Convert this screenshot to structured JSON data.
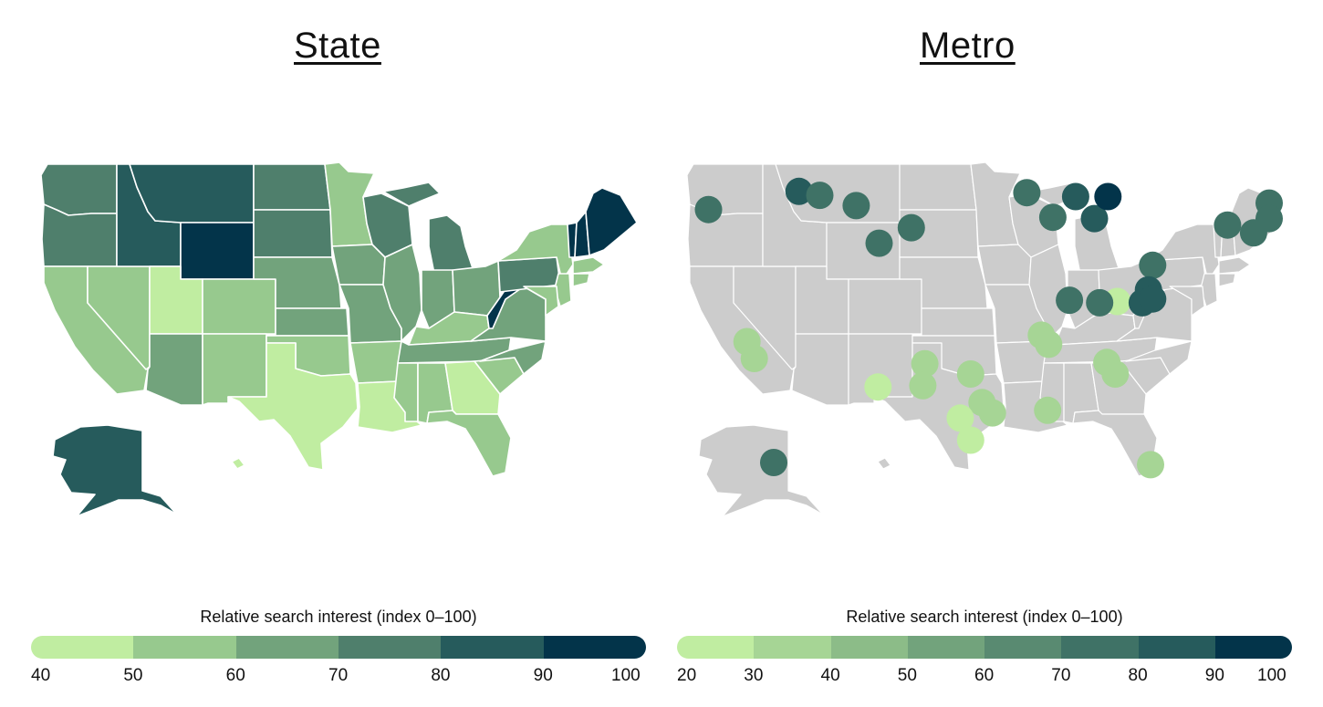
{
  "panels": {
    "state": {
      "title": "State"
    },
    "metro": {
      "title": "Metro"
    }
  },
  "legends": {
    "state": {
      "title": "Relative search interest (index 0–100)",
      "ticks": [
        "40",
        "50",
        "60",
        "70",
        "80",
        "90",
        "100"
      ],
      "colors": [
        "#c0eda1",
        "#97c98e",
        "#72a37c",
        "#4f7f6c",
        "#265b5c",
        "#03344a"
      ]
    },
    "metro": {
      "title": "Relative search interest (index 0–100)",
      "ticks": [
        "20",
        "30",
        "40",
        "50",
        "60",
        "70",
        "80",
        "90",
        "100"
      ],
      "colors": [
        "#c0eda1",
        "#a6d595",
        "#8cbc88",
        "#72a37c",
        "#598a71",
        "#3f7266",
        "#265b5c",
        "#03344a"
      ]
    }
  },
  "colors": {
    "metro_base_map": "#cccccc",
    "borders": "#ffffff"
  },
  "chart_data": [
    {
      "type": "choropleth",
      "title": "State",
      "legend_title": "Relative search interest (index 0–100)",
      "bins": [
        40,
        50,
        60,
        70,
        80,
        90,
        100
      ],
      "states": [
        {
          "state": "WA",
          "value": 75
        },
        {
          "state": "OR",
          "value": 75
        },
        {
          "state": "CA",
          "value": 55
        },
        {
          "state": "NV",
          "value": 55
        },
        {
          "state": "ID",
          "value": 85
        },
        {
          "state": "MT",
          "value": 85
        },
        {
          "state": "WY",
          "value": 95
        },
        {
          "state": "UT",
          "value": 45
        },
        {
          "state": "CO",
          "value": 55
        },
        {
          "state": "AZ",
          "value": 65
        },
        {
          "state": "NM",
          "value": 55
        },
        {
          "state": "ND",
          "value": 75
        },
        {
          "state": "SD",
          "value": 75
        },
        {
          "state": "NE",
          "value": 65
        },
        {
          "state": "KS",
          "value": 65
        },
        {
          "state": "OK",
          "value": 55
        },
        {
          "state": "TX",
          "value": 45
        },
        {
          "state": "MN",
          "value": 55
        },
        {
          "state": "IA",
          "value": 65
        },
        {
          "state": "MO",
          "value": 65
        },
        {
          "state": "AR",
          "value": 55
        },
        {
          "state": "LA",
          "value": 45
        },
        {
          "state": "WI",
          "value": 75
        },
        {
          "state": "IL",
          "value": 65
        },
        {
          "state": "MI",
          "value": 75
        },
        {
          "state": "IN",
          "value": 65
        },
        {
          "state": "OH",
          "value": 65
        },
        {
          "state": "KY",
          "value": 55
        },
        {
          "state": "TN",
          "value": 65
        },
        {
          "state": "MS",
          "value": 55
        },
        {
          "state": "AL",
          "value": 55
        },
        {
          "state": "GA",
          "value": 45
        },
        {
          "state": "FL",
          "value": 55
        },
        {
          "state": "SC",
          "value": 55
        },
        {
          "state": "NC",
          "value": 65
        },
        {
          "state": "VA",
          "value": 65
        },
        {
          "state": "WV",
          "value": 95
        },
        {
          "state": "PA",
          "value": 75
        },
        {
          "state": "NY",
          "value": 55
        },
        {
          "state": "VT",
          "value": 95
        },
        {
          "state": "NH",
          "value": 95
        },
        {
          "state": "ME",
          "value": 95
        },
        {
          "state": "MA",
          "value": 55
        },
        {
          "state": "CT",
          "value": 55
        },
        {
          "state": "NJ",
          "value": 55
        },
        {
          "state": "MD",
          "value": 55
        },
        {
          "state": "AK",
          "value": 85
        },
        {
          "state": "HI",
          "value": 45
        }
      ]
    },
    {
      "type": "bubble-map",
      "title": "Metro",
      "legend_title": "Relative search interest (index 0–100)",
      "bins": [
        20,
        30,
        40,
        50,
        60,
        70,
        80,
        90,
        100
      ],
      "points": [
        {
          "lon": -122.7,
          "lat": 45.5,
          "value": 75
        },
        {
          "lon": -114.0,
          "lat": 46.9,
          "value": 85
        },
        {
          "lon": -112.0,
          "lat": 46.6,
          "value": 75
        },
        {
          "lon": -108.5,
          "lat": 45.8,
          "value": 75
        },
        {
          "lon": -106.3,
          "lat": 42.9,
          "value": 75
        },
        {
          "lon": -103.2,
          "lat": 44.1,
          "value": 75
        },
        {
          "lon": -92.1,
          "lat": 46.8,
          "value": 75
        },
        {
          "lon": -89.6,
          "lat": 44.9,
          "value": 75
        },
        {
          "lon": -87.4,
          "lat": 46.5,
          "value": 85
        },
        {
          "lon": -85.6,
          "lat": 44.8,
          "value": 85
        },
        {
          "lon": -84.3,
          "lat": 46.5,
          "value": 95
        },
        {
          "lon": -83.4,
          "lat": 38.4,
          "value": 25
        },
        {
          "lon": -88.0,
          "lat": 38.5,
          "value": 75
        },
        {
          "lon": -85.1,
          "lat": 38.3,
          "value": 75
        },
        {
          "lon": -80.0,
          "lat": 41.2,
          "value": 75
        },
        {
          "lon": -80.4,
          "lat": 39.3,
          "value": 85
        },
        {
          "lon": -81.0,
          "lat": 38.3,
          "value": 85
        },
        {
          "lon": -80.0,
          "lat": 38.6,
          "value": 85
        },
        {
          "lon": -72.8,
          "lat": 44.3,
          "value": 75
        },
        {
          "lon": -68.8,
          "lat": 46.0,
          "value": 75
        },
        {
          "lon": -68.8,
          "lat": 44.8,
          "value": 75
        },
        {
          "lon": -70.3,
          "lat": 43.7,
          "value": 75
        },
        {
          "lon": -119.0,
          "lat": 35.3,
          "value": 35
        },
        {
          "lon": -118.3,
          "lat": 34.0,
          "value": 35
        },
        {
          "lon": -106.4,
          "lat": 31.8,
          "value": 25
        },
        {
          "lon": -101.9,
          "lat": 33.6,
          "value": 35
        },
        {
          "lon": -102.1,
          "lat": 31.9,
          "value": 35
        },
        {
          "lon": -97.5,
          "lat": 32.8,
          "value": 35
        },
        {
          "lon": -95.4,
          "lat": 29.8,
          "value": 35
        },
        {
          "lon": -96.4,
          "lat": 30.6,
          "value": 35
        },
        {
          "lon": -98.5,
          "lat": 29.4,
          "value": 25
        },
        {
          "lon": -97.5,
          "lat": 27.7,
          "value": 25
        },
        {
          "lon": -90.1,
          "lat": 30.0,
          "value": 35
        },
        {
          "lon": -90.7,
          "lat": 35.8,
          "value": 35
        },
        {
          "lon": -90.0,
          "lat": 35.1,
          "value": 35
        },
        {
          "lon": -84.4,
          "lat": 33.7,
          "value": 35
        },
        {
          "lon": -83.6,
          "lat": 32.8,
          "value": 35
        },
        {
          "lon": -80.2,
          "lat": 25.8,
          "value": 35
        },
        {
          "lon": -149.9,
          "lat": 61.2,
          "value": 75
        }
      ]
    }
  ]
}
